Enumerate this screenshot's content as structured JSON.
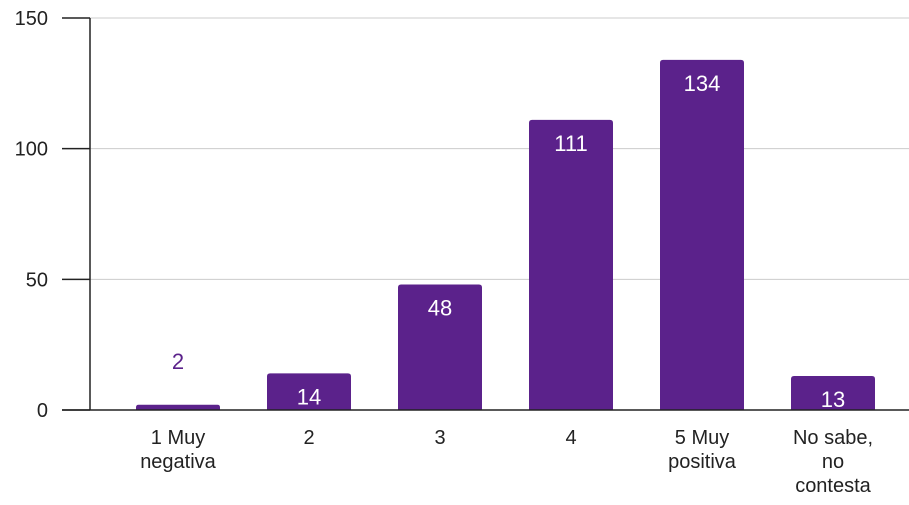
{
  "chart_data": {
    "type": "bar",
    "categories": [
      [
        "1 Muy",
        "negativa"
      ],
      [
        "2"
      ],
      [
        "3"
      ],
      [
        "4"
      ],
      [
        "5 Muy",
        "positiva"
      ],
      [
        "No sabe,",
        "no",
        "contesta"
      ]
    ],
    "values": [
      2,
      14,
      48,
      111,
      134,
      13
    ],
    "value_labels": [
      "2",
      "14",
      "48",
      "111",
      "134",
      "13"
    ],
    "yticks": [
      0,
      50,
      100,
      150
    ],
    "ytick_labels": [
      "0",
      "50",
      "100",
      "150"
    ],
    "ylim": [
      0,
      150
    ],
    "grid": true,
    "colors": {
      "bar": "#5b228b",
      "label_inside": "#ffffff",
      "label_outside": "#5b228b",
      "grid": "#cccccc",
      "axis": "#222222"
    }
  }
}
